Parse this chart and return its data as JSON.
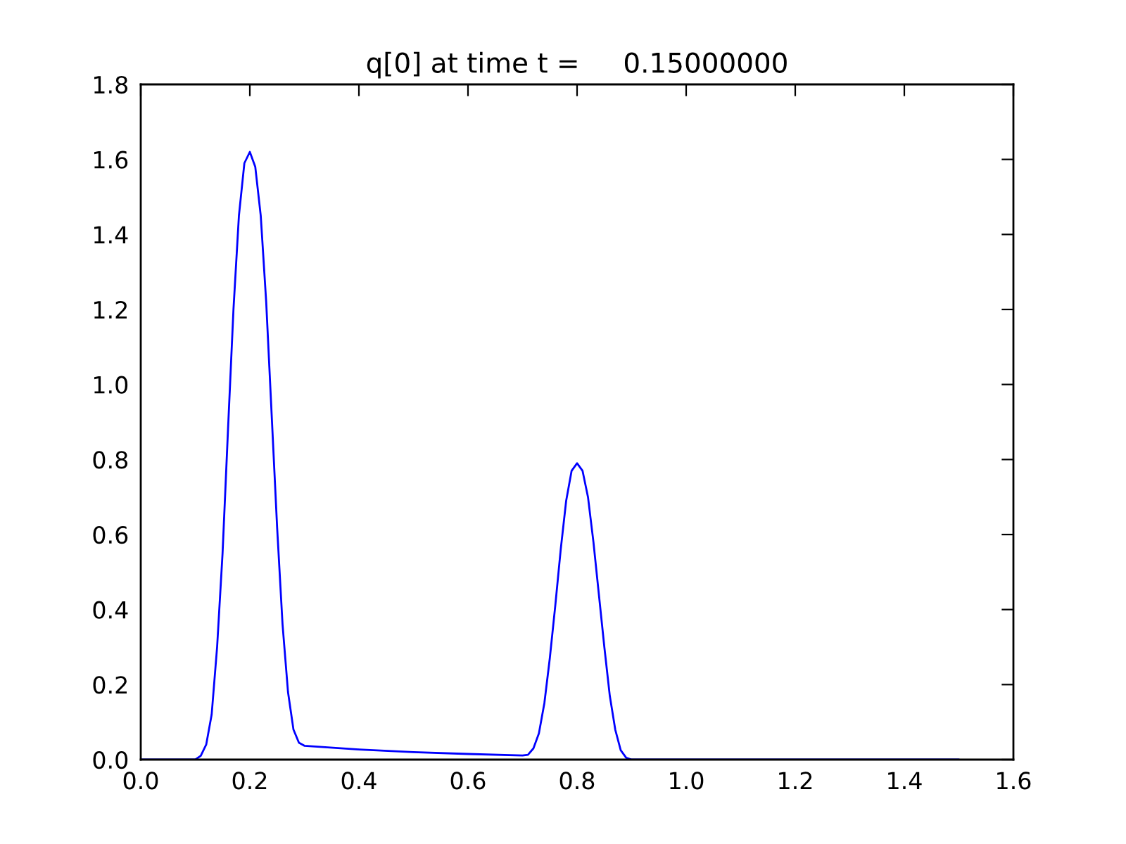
{
  "chart_data": {
    "type": "line",
    "title": "q[0] at time t =     0.15000000",
    "x": [
      0,
      0.1,
      0.11,
      0.12,
      0.13,
      0.14,
      0.15,
      0.16,
      0.17,
      0.18,
      0.19,
      0.2,
      0.21,
      0.22,
      0.23,
      0.24,
      0.25,
      0.26,
      0.27,
      0.28,
      0.29,
      0.3,
      0.4,
      0.5,
      0.6,
      0.7,
      0.71,
      0.72,
      0.73,
      0.74,
      0.75,
      0.76,
      0.77,
      0.78,
      0.79,
      0.8,
      0.81,
      0.82,
      0.83,
      0.84,
      0.85,
      0.86,
      0.87,
      0.88,
      0.89,
      0.9,
      1.5
    ],
    "series": [
      {
        "color": "#0000ff",
        "values": [
          0,
          0,
          0.01,
          0.04,
          0.12,
          0.3,
          0.55,
          0.88,
          1.2,
          1.45,
          1.59,
          1.62,
          1.58,
          1.45,
          1.22,
          0.92,
          0.62,
          0.36,
          0.18,
          0.08,
          0.045,
          0.037,
          0.027,
          0.02,
          0.015,
          0.011,
          0.013,
          0.03,
          0.07,
          0.15,
          0.27,
          0.41,
          0.56,
          0.69,
          0.77,
          0.79,
          0.77,
          0.7,
          0.58,
          0.44,
          0.3,
          0.17,
          0.08,
          0.025,
          0.005,
          0,
          0
        ]
      }
    ],
    "xlim": [
      0,
      1.6
    ],
    "ylim": [
      0,
      1.8
    ],
    "xticks": [
      {
        "value": 0,
        "label": "0.0"
      },
      {
        "value": 0.2,
        "label": "0.2"
      },
      {
        "value": 0.4,
        "label": "0.4"
      },
      {
        "value": 0.6,
        "label": "0.6"
      },
      {
        "value": 0.8,
        "label": "0.8"
      },
      {
        "value": 1.0,
        "label": "1.0"
      },
      {
        "value": 1.2,
        "label": "1.2"
      },
      {
        "value": 1.4,
        "label": "1.4"
      },
      {
        "value": 1.6,
        "label": "1.6"
      }
    ],
    "yticks": [
      {
        "value": 0,
        "label": "0.0"
      },
      {
        "value": 0.2,
        "label": "0.2"
      },
      {
        "value": 0.4,
        "label": "0.4"
      },
      {
        "value": 0.6,
        "label": "0.6"
      },
      {
        "value": 0.8,
        "label": "0.8"
      },
      {
        "value": 1.0,
        "label": "1.0"
      },
      {
        "value": 1.2,
        "label": "1.2"
      },
      {
        "value": 1.4,
        "label": "1.4"
      },
      {
        "value": 1.6,
        "label": "1.6"
      },
      {
        "value": 1.8,
        "label": "1.8"
      }
    ],
    "grid": false,
    "marker": "none",
    "line_style": "solid"
  }
}
